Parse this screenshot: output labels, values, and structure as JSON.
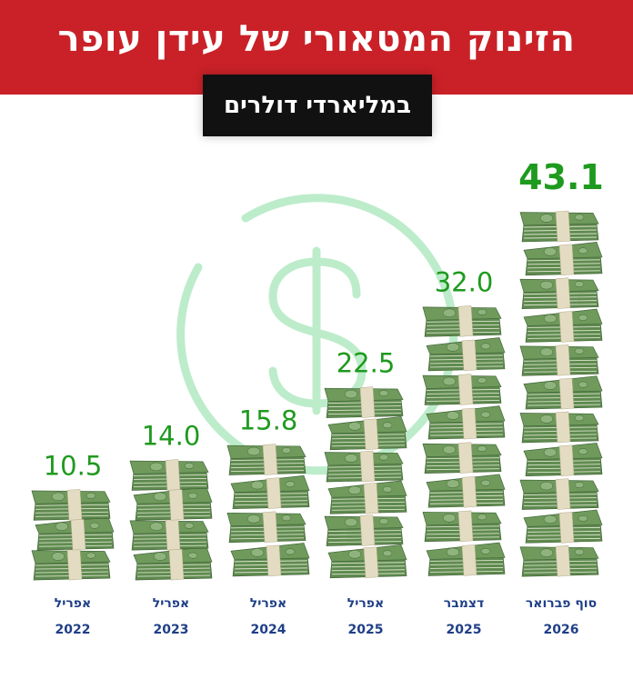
{
  "header": {
    "title": "הזינוק המטאורי של עידן עופר",
    "subtitle": "במליארדי דולרים"
  },
  "colors": {
    "banner": "#c92127",
    "value_text": "#1e9a1e",
    "category_text": "#1f3f87",
    "dollar_watermark": "#bdeccb",
    "bill_green": "#6f9a5c",
    "band": "#e3dcc2"
  },
  "chart_data": {
    "type": "bar",
    "title": "הזינוק המטאורי של עידן עופר",
    "subtitle": "במליארדי דולרים",
    "categories": [
      "אפריל 2022",
      "אפריל 2023",
      "אפריל 2024",
      "אפריל 2025",
      "דצמבר 2025",
      "סוף פברואר 2026"
    ],
    "category_lines": [
      [
        "אפריל",
        "2022"
      ],
      [
        "אפריל",
        "2023"
      ],
      [
        "אפריל",
        "2024"
      ],
      [
        "אפריל",
        "2025"
      ],
      [
        "דצמבר",
        "2025"
      ],
      [
        "סוף פברואר",
        "2026"
      ]
    ],
    "values": [
      10.5,
      14.0,
      15.8,
      22.5,
      32.0,
      43.1
    ],
    "value_labels": [
      "10.5",
      "14.0",
      "15.8",
      "22.5",
      "32.0",
      "43.1"
    ],
    "highlight_index": 5,
    "bar_style": "stacked-money-bundles",
    "ylim": [
      0,
      43.1
    ]
  }
}
